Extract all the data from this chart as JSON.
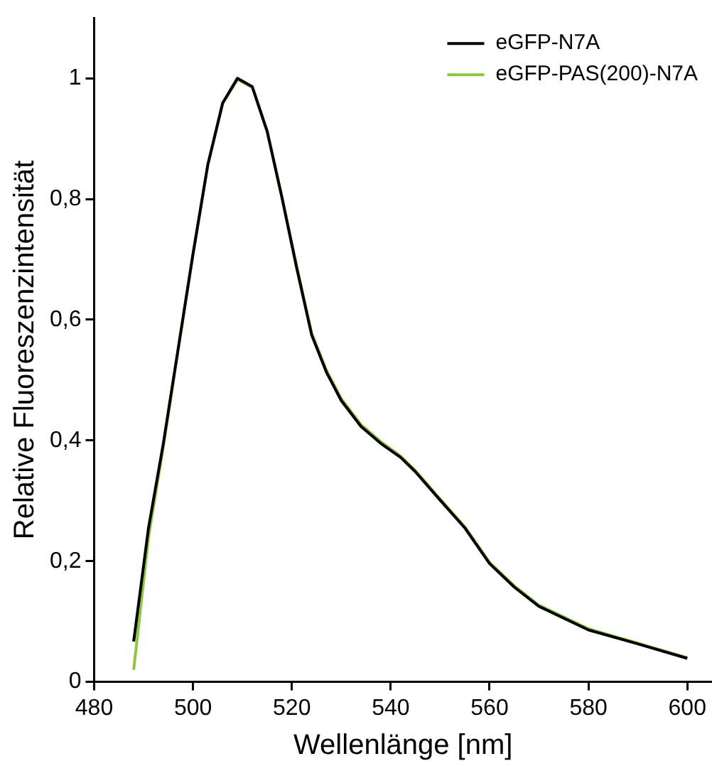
{
  "chart_data": {
    "type": "line",
    "xlabel": "Wellenlänge [nm]",
    "ylabel": "Relative Fluoreszenzintensität",
    "xlim": [
      480,
      605
    ],
    "xticks": [
      480,
      500,
      520,
      540,
      560,
      580,
      600
    ],
    "ylim": [
      0,
      1.1
    ],
    "yticks": [
      0,
      {
        "value": 0.2,
        "label": "0,2"
      },
      {
        "value": 0.4,
        "label": "0,4"
      },
      {
        "value": 0.6,
        "label": "0,6"
      },
      {
        "value": 0.8,
        "label": "0,8"
      },
      1
    ],
    "grid": false,
    "legend": "top right",
    "marker": "none",
    "line_style": "solid",
    "series": [
      {
        "name": "eGFP-N7A",
        "color": "#000000",
        "x": [
          488,
          491,
          494,
          497,
          500,
          503,
          506,
          509,
          512,
          515,
          518,
          521,
          524,
          527,
          530,
          534,
          538,
          542,
          545,
          550,
          555,
          560,
          565,
          570,
          580,
          590,
          600
        ],
        "values": [
          0.067,
          0.255,
          0.395,
          0.552,
          0.709,
          0.857,
          0.959,
          1.0,
          0.986,
          0.912,
          0.802,
          0.685,
          0.575,
          0.513,
          0.466,
          0.423,
          0.395,
          0.372,
          0.348,
          0.301,
          0.255,
          0.196,
          0.157,
          0.125,
          0.086,
          0.063,
          0.039
        ]
      },
      {
        "name": "eGFP-PAS(200)-N7A",
        "color": "#8cc63f",
        "x": [
          488,
          491,
          494,
          497,
          500,
          503,
          506,
          509,
          512,
          515,
          518,
          521,
          524,
          527,
          530,
          534,
          538,
          542,
          545,
          550,
          555,
          560,
          565,
          570,
          580,
          590,
          600
        ],
        "values": [
          0.02,
          0.24,
          0.39,
          0.55,
          0.708,
          0.856,
          0.958,
          0.998,
          0.985,
          0.913,
          0.804,
          0.688,
          0.578,
          0.516,
          0.469,
          0.426,
          0.398,
          0.374,
          0.35,
          0.303,
          0.257,
          0.198,
          0.159,
          0.127,
          0.088,
          0.064,
          0.04
        ]
      }
    ]
  }
}
